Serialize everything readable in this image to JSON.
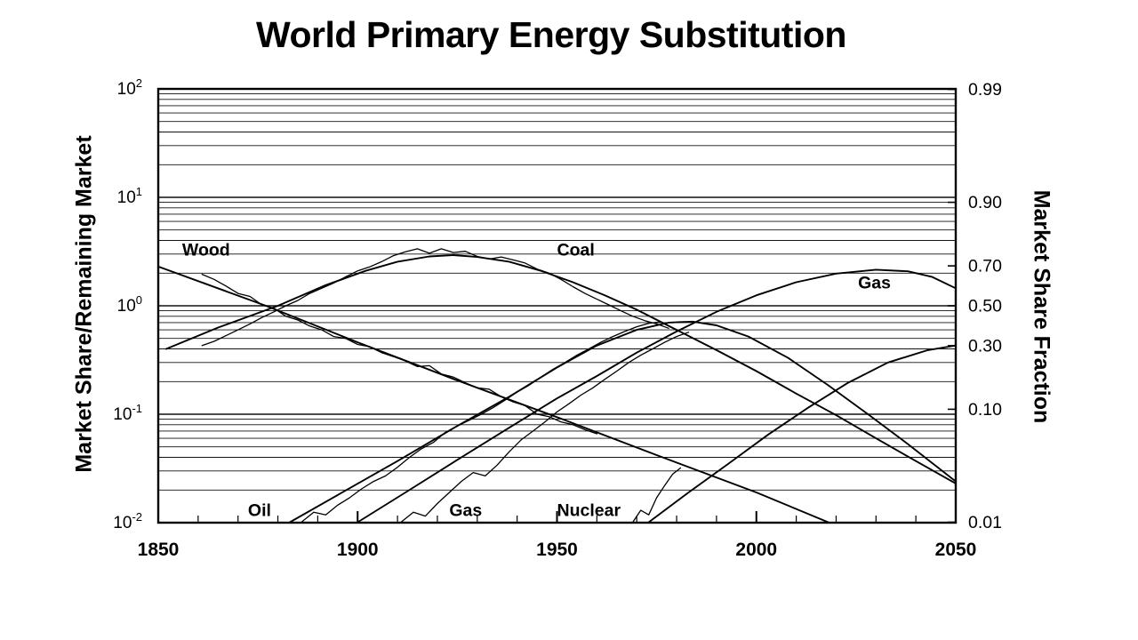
{
  "title": "World Primary Energy Substitution",
  "chart_data": {
    "type": "line",
    "title": "World Primary Energy Substitution",
    "grid": "horizontal-log-minor",
    "legend_position": "none",
    "x": {
      "min": 1850,
      "max": 2050,
      "minor_step": 10,
      "major_ticks": [
        "1850",
        "1900",
        "1950",
        "2000",
        "2050"
      ]
    },
    "y_left": {
      "label": "Market Share/Remaining Market",
      "scale": "log10",
      "min": 0.01,
      "max": 100,
      "ticks": [
        {
          "base": "10",
          "exp": "2",
          "value": 100
        },
        {
          "base": "10",
          "exp": "1",
          "value": 10
        },
        {
          "base": "10",
          "exp": "0",
          "value": 1
        },
        {
          "base": "10",
          "exp": "-1",
          "value": 0.1
        },
        {
          "base": "10",
          "exp": "-2",
          "value": 0.01
        }
      ]
    },
    "y_right": {
      "label": "Market Share Fraction",
      "ticks": [
        {
          "text": "0.99",
          "value": 0.99
        },
        {
          "text": "0.90",
          "value": 0.9
        },
        {
          "text": "0.70",
          "value": 0.7
        },
        {
          "text": "0.50",
          "value": 0.5
        },
        {
          "text": "0.30",
          "value": 0.3
        },
        {
          "text": "0.10",
          "value": 0.1
        },
        {
          "text": "0.01",
          "value": 0.01
        }
      ]
    },
    "series": [
      {
        "id": "wood-trend",
        "fuel": "Wood",
        "style": "smooth",
        "points": [
          [
            1850,
            2.3
          ],
          [
            1877,
            1.0
          ],
          [
            1900,
            0.46
          ],
          [
            1925,
            0.205
          ],
          [
            1950,
            0.094
          ],
          [
            1975,
            0.042
          ],
          [
            2000,
            0.019
          ],
          [
            2018,
            0.0101
          ]
        ]
      },
      {
        "id": "coal-trend",
        "fuel": "Coal",
        "style": "smooth",
        "points": [
          [
            1852,
            0.4
          ],
          [
            1865,
            0.63
          ],
          [
            1880,
            1.0
          ],
          [
            1892,
            1.55
          ],
          [
            1902,
            2.1
          ],
          [
            1910,
            2.55
          ],
          [
            1918,
            2.85
          ],
          [
            1924,
            2.93
          ],
          [
            1930,
            2.82
          ],
          [
            1938,
            2.55
          ],
          [
            1946,
            2.1
          ],
          [
            1954,
            1.65
          ],
          [
            1962,
            1.25
          ],
          [
            1970,
            0.92
          ],
          [
            1980,
            0.6
          ],
          [
            1990,
            0.39
          ],
          [
            2000,
            0.25
          ],
          [
            2010,
            0.155
          ],
          [
            2020,
            0.098
          ],
          [
            2030,
            0.06
          ],
          [
            2040,
            0.037
          ],
          [
            2050,
            0.023
          ]
        ]
      },
      {
        "id": "oil-trend",
        "fuel": "Oil",
        "style": "smooth",
        "points": [
          [
            1883,
            0.0101
          ],
          [
            1895,
            0.018
          ],
          [
            1910,
            0.037
          ],
          [
            1925,
            0.078
          ],
          [
            1938,
            0.145
          ],
          [
            1950,
            0.27
          ],
          [
            1960,
            0.43
          ],
          [
            1970,
            0.6
          ],
          [
            1978,
            0.7
          ],
          [
            1984,
            0.715
          ],
          [
            1990,
            0.66
          ],
          [
            1998,
            0.52
          ],
          [
            2008,
            0.33
          ],
          [
            2018,
            0.185
          ],
          [
            2028,
            0.1
          ],
          [
            2038,
            0.053
          ],
          [
            2050,
            0.024
          ]
        ]
      },
      {
        "id": "gas-trend",
        "fuel": "Gas",
        "style": "smooth",
        "points": [
          [
            1900,
            0.0101
          ],
          [
            1912,
            0.019
          ],
          [
            1925,
            0.038
          ],
          [
            1938,
            0.075
          ],
          [
            1950,
            0.14
          ],
          [
            1960,
            0.225
          ],
          [
            1970,
            0.37
          ],
          [
            1980,
            0.58
          ],
          [
            1990,
            0.88
          ],
          [
            2000,
            1.25
          ],
          [
            2010,
            1.65
          ],
          [
            2020,
            1.98
          ],
          [
            2030,
            2.15
          ],
          [
            2038,
            2.08
          ],
          [
            2044,
            1.85
          ],
          [
            2050,
            1.45
          ]
        ]
      },
      {
        "id": "nuclear-trend",
        "fuel": "Nuclear",
        "style": "smooth",
        "points": [
          [
            1973,
            0.0101
          ],
          [
            1983,
            0.019
          ],
          [
            1993,
            0.035
          ],
          [
            2003,
            0.065
          ],
          [
            2013,
            0.115
          ],
          [
            2023,
            0.195
          ],
          [
            2033,
            0.3
          ],
          [
            2043,
            0.39
          ],
          [
            2050,
            0.43
          ]
        ]
      },
      {
        "id": "wood-historical",
        "fuel": "Wood",
        "style": "hist",
        "points": [
          [
            1861,
            1.95
          ],
          [
            1864,
            1.75
          ],
          [
            1867,
            1.52
          ],
          [
            1870,
            1.3
          ],
          [
            1873,
            1.22
          ],
          [
            1876,
            1.02
          ],
          [
            1879,
            0.95
          ],
          [
            1882,
            0.8
          ],
          [
            1885,
            0.74
          ],
          [
            1888,
            0.65
          ],
          [
            1891,
            0.6
          ],
          [
            1894,
            0.52
          ],
          [
            1897,
            0.5
          ],
          [
            1900,
            0.44
          ],
          [
            1903,
            0.42
          ],
          [
            1906,
            0.37
          ],
          [
            1909,
            0.34
          ],
          [
            1912,
            0.31
          ],
          [
            1915,
            0.275
          ],
          [
            1918,
            0.28
          ],
          [
            1921,
            0.235
          ],
          [
            1924,
            0.22
          ],
          [
            1927,
            0.195
          ],
          [
            1930,
            0.175
          ],
          [
            1933,
            0.17
          ],
          [
            1936,
            0.145
          ],
          [
            1939,
            0.13
          ],
          [
            1942,
            0.12
          ],
          [
            1945,
            0.1
          ],
          [
            1948,
            0.095
          ],
          [
            1951,
            0.085
          ],
          [
            1954,
            0.08
          ],
          [
            1957,
            0.072
          ],
          [
            1960,
            0.066
          ]
        ]
      },
      {
        "id": "coal-historical",
        "fuel": "Coal",
        "style": "hist",
        "points": [
          [
            1861,
            0.43
          ],
          [
            1864,
            0.47
          ],
          [
            1867,
            0.53
          ],
          [
            1870,
            0.6
          ],
          [
            1873,
            0.68
          ],
          [
            1876,
            0.78
          ],
          [
            1879,
            0.88
          ],
          [
            1882,
            1.0
          ],
          [
            1885,
            1.12
          ],
          [
            1888,
            1.3
          ],
          [
            1891,
            1.45
          ],
          [
            1894,
            1.62
          ],
          [
            1897,
            1.85
          ],
          [
            1900,
            2.1
          ],
          [
            1903,
            2.28
          ],
          [
            1906,
            2.55
          ],
          [
            1909,
            2.9
          ],
          [
            1912,
            3.15
          ],
          [
            1915,
            3.35
          ],
          [
            1918,
            3.05
          ],
          [
            1921,
            3.35
          ],
          [
            1924,
            3.1
          ],
          [
            1927,
            3.18
          ],
          [
            1930,
            2.85
          ],
          [
            1933,
            2.7
          ],
          [
            1936,
            2.82
          ],
          [
            1939,
            2.65
          ],
          [
            1942,
            2.48
          ],
          [
            1945,
            2.18
          ],
          [
            1948,
            2.0
          ],
          [
            1951,
            1.75
          ],
          [
            1954,
            1.5
          ],
          [
            1957,
            1.3
          ],
          [
            1960,
            1.15
          ],
          [
            1963,
            1.02
          ],
          [
            1966,
            0.9
          ],
          [
            1969,
            0.8
          ],
          [
            1972,
            0.73
          ],
          [
            1975,
            0.68
          ],
          [
            1978,
            0.62
          ]
        ]
      },
      {
        "id": "oil-historical",
        "fuel": "Oil",
        "style": "hist",
        "points": [
          [
            1886,
            0.0102
          ],
          [
            1889,
            0.0125
          ],
          [
            1892,
            0.0118
          ],
          [
            1895,
            0.0145
          ],
          [
            1898,
            0.017
          ],
          [
            1901,
            0.0205
          ],
          [
            1904,
            0.024
          ],
          [
            1907,
            0.027
          ],
          [
            1910,
            0.0325
          ],
          [
            1913,
            0.04
          ],
          [
            1916,
            0.048
          ],
          [
            1919,
            0.055
          ],
          [
            1922,
            0.068
          ],
          [
            1925,
            0.078
          ],
          [
            1928,
            0.088
          ],
          [
            1931,
            0.1
          ],
          [
            1934,
            0.115
          ],
          [
            1937,
            0.135
          ],
          [
            1940,
            0.16
          ],
          [
            1943,
            0.185
          ],
          [
            1946,
            0.22
          ],
          [
            1949,
            0.26
          ],
          [
            1952,
            0.3
          ],
          [
            1955,
            0.35
          ],
          [
            1958,
            0.4
          ],
          [
            1961,
            0.46
          ],
          [
            1964,
            0.52
          ],
          [
            1967,
            0.58
          ],
          [
            1970,
            0.64
          ],
          [
            1973,
            0.69
          ],
          [
            1976,
            0.71
          ]
        ]
      },
      {
        "id": "gas-historical",
        "fuel": "Gas",
        "style": "hist",
        "points": [
          [
            1911,
            0.0102
          ],
          [
            1914,
            0.0125
          ],
          [
            1917,
            0.0115
          ],
          [
            1920,
            0.015
          ],
          [
            1923,
            0.019
          ],
          [
            1926,
            0.024
          ],
          [
            1929,
            0.029
          ],
          [
            1932,
            0.027
          ],
          [
            1935,
            0.034
          ],
          [
            1938,
            0.045
          ],
          [
            1941,
            0.058
          ],
          [
            1944,
            0.07
          ],
          [
            1947,
            0.085
          ],
          [
            1950,
            0.105
          ],
          [
            1953,
            0.125
          ],
          [
            1956,
            0.15
          ],
          [
            1959,
            0.175
          ],
          [
            1962,
            0.21
          ],
          [
            1965,
            0.25
          ],
          [
            1968,
            0.3
          ],
          [
            1971,
            0.35
          ],
          [
            1974,
            0.4
          ],
          [
            1977,
            0.46
          ],
          [
            1980,
            0.52
          ],
          [
            1983,
            0.57
          ]
        ]
      },
      {
        "id": "nuclear-historical",
        "fuel": "Nuclear",
        "style": "hist",
        "points": [
          [
            1969,
            0.0101
          ],
          [
            1971,
            0.013
          ],
          [
            1973,
            0.0118
          ],
          [
            1975,
            0.017
          ],
          [
            1977,
            0.022
          ],
          [
            1979,
            0.028
          ],
          [
            1981,
            0.032
          ]
        ]
      }
    ],
    "curve_labels": [
      {
        "text": "Wood",
        "year": 1856,
        "value": 2.9
      },
      {
        "text": "Coal",
        "year": 1950,
        "value": 2.9
      },
      {
        "text": "Gas",
        "year": 2025.5,
        "value": 1.45
      },
      {
        "text": "Oil",
        "year": 1872.5,
        "value": 0.0115
      },
      {
        "text": "Gas",
        "year": 1923,
        "value": 0.0115
      },
      {
        "text": "Nuclear",
        "year": 1950,
        "value": 0.0115
      }
    ],
    "colors": {
      "ink": "#000000",
      "background": "#ffffff"
    }
  }
}
